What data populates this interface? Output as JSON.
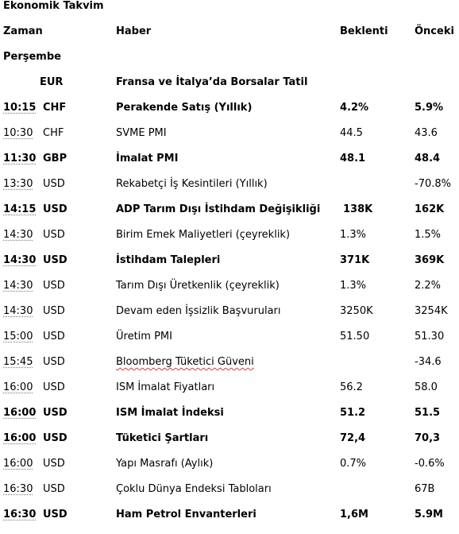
{
  "title": "Ekonomik Takvim",
  "headers": {
    "time": "Zaman",
    "news": "Haber",
    "expected": "Beklenti",
    "previous": "Önceki"
  },
  "day": "Perşembe",
  "holiday": {
    "currency": "EUR",
    "text": "Fransa ve İtalya’da Borsalar Tatil"
  },
  "rows": [
    {
      "time": "10:15",
      "cur": "CHF",
      "news": "Perakende Satış (Yıllık)",
      "exp": "4.2%",
      "prev": "5.9%",
      "bold": true
    },
    {
      "time": "10:30",
      "cur": "CHF",
      "news": "SVME PMI",
      "exp": "44.5",
      "prev": "43.6",
      "bold": false
    },
    {
      "time": "11:30",
      "cur": "GBP",
      "news": "İmalat PMI",
      "exp": "48.1",
      "prev": "48.4",
      "bold": true
    },
    {
      "time": "13:30",
      "cur": "USD",
      "news": "Rekabetçi İş Kesintileri (Yıllık)",
      "exp": "",
      "prev": "-70.8%",
      "bold": false
    },
    {
      "time": "14:15",
      "cur": "USD",
      "news": "ADP Tarım Dışı İstihdam Değişikliği",
      "exp": "138K",
      "prev": "162K",
      "bold": true
    },
    {
      "time": "14:30",
      "cur": "USD",
      "news": "Birim Emek Maliyetleri (çeyreklik)",
      "exp": "1.3%",
      "prev": "1.5%",
      "bold": false
    },
    {
      "time": "14:30",
      "cur": "USD",
      "news": "İstihdam Talepleri",
      "exp": "371K",
      "prev": "369K",
      "bold": true
    },
    {
      "time": "14:30",
      "cur": "USD",
      "news": "Tarım Dışı Üretkenlik (çeyreklik)",
      "exp": "1.3%",
      "prev": "2.2%",
      "bold": false
    },
    {
      "time": "14:30",
      "cur": "USD",
      "news": "Devam eden İşsizlik Başvuruları",
      "exp": "3250K",
      "prev": "3254K",
      "bold": false
    },
    {
      "time": "15:00",
      "cur": "USD",
      "news": "Üretim PMI",
      "exp": "51.50",
      "prev": "51.30",
      "bold": false
    },
    {
      "time": "15:45",
      "cur": "USD",
      "news": "Bloomberg Tüketici Güveni",
      "exp": "",
      "prev": "-34.6",
      "bold": false
    },
    {
      "time": "16:00",
      "cur": "USD",
      "news": "ISM İmalat Fiyatları",
      "exp": "56.2",
      "prev": "58.0",
      "bold": false
    },
    {
      "time": "16:00",
      "cur": "USD",
      "news": "ISM İmalat İndeksi",
      "exp": "51.2",
      "prev": "51.5",
      "bold": true
    },
    {
      "time": "16:00",
      "cur": "USD",
      "news": "Tüketici Şartları",
      "exp": "72,4",
      "prev": "70,3",
      "bold": true
    },
    {
      "time": "16:00",
      "cur": "USD",
      "news": "Yapı Masrafı (Aylık)",
      "exp": "0.7%",
      "prev": "-0.6%",
      "bold": false
    },
    {
      "time": "16:30",
      "cur": "USD",
      "news": "Çoklu Dünya Endeksi Tabloları",
      "exp": "",
      "prev": "67B",
      "bold": false
    },
    {
      "time": "16:30",
      "cur": "USD",
      "news": "Ham Petrol Envanterleri",
      "exp": "1,6M",
      "prev": "5.9M",
      "bold": true
    }
  ]
}
